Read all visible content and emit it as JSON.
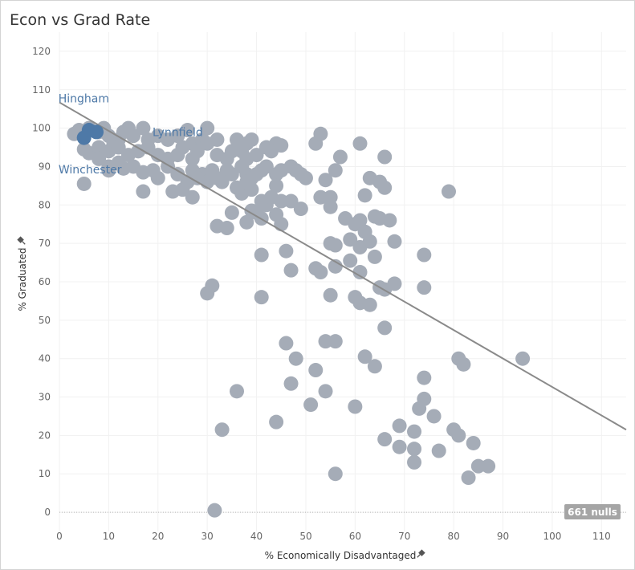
{
  "title": "Econ vs Grad Rate",
  "nulls_badge": "661 nulls",
  "colors": {
    "point": "#a5acb7",
    "highlight": "#4e79a7",
    "trend": "#8a8a8a",
    "grid": "#f1f1f1"
  },
  "chart_data": {
    "type": "scatter",
    "title": "Econ vs Grad Rate",
    "xlabel": "% Economically Disadvantaged",
    "ylabel": "% Graduated",
    "xlim": [
      0,
      115
    ],
    "ylim": [
      -5,
      125
    ],
    "xticks": [
      0,
      10,
      20,
      30,
      40,
      50,
      60,
      70,
      80,
      90,
      100,
      110
    ],
    "yticks": [
      0,
      10,
      20,
      30,
      40,
      50,
      60,
      70,
      80,
      90,
      100,
      110,
      120
    ],
    "grid": true,
    "trendline": {
      "x": [
        0,
        115
      ],
      "y": [
        106.7,
        21.5
      ]
    },
    "highlighted": [
      {
        "label": "Hingham",
        "x": 5,
        "y": 97.5
      },
      {
        "label": "Lynnfield",
        "x": 7.5,
        "y": 99
      },
      {
        "label": "Winchester",
        "x": 6,
        "y": 99.5
      }
    ],
    "points": [
      [
        3,
        98.5
      ],
      [
        4,
        99.5
      ],
      [
        6,
        100
      ],
      [
        8,
        99
      ],
      [
        9,
        100
      ],
      [
        10,
        98
      ],
      [
        12,
        97
      ],
      [
        13,
        99
      ],
      [
        14,
        100
      ],
      [
        15,
        98
      ],
      [
        17,
        100
      ],
      [
        18,
        97
      ],
      [
        20,
        98
      ],
      [
        22,
        97
      ],
      [
        24,
        98
      ],
      [
        26,
        99.5
      ],
      [
        27,
        96
      ],
      [
        29,
        97
      ],
      [
        30,
        100
      ],
      [
        32,
        97
      ],
      [
        5,
        94.5
      ],
      [
        6,
        93.5
      ],
      [
        8,
        95
      ],
      [
        10,
        94
      ],
      [
        11,
        96
      ],
      [
        12,
        95
      ],
      [
        14,
        93
      ],
      [
        16,
        94
      ],
      [
        18,
        95
      ],
      [
        20,
        93
      ],
      [
        22,
        92
      ],
      [
        24,
        93
      ],
      [
        25,
        95
      ],
      [
        27,
        92
      ],
      [
        28,
        94
      ],
      [
        30,
        96
      ],
      [
        32,
        93
      ],
      [
        34,
        92
      ],
      [
        35,
        94
      ],
      [
        36,
        97
      ],
      [
        38,
        96
      ],
      [
        39,
        97
      ],
      [
        37,
        94
      ],
      [
        38,
        92
      ],
      [
        40,
        93
      ],
      [
        42,
        95
      ],
      [
        44,
        96
      ],
      [
        45,
        95.5
      ],
      [
        43,
        94
      ],
      [
        8,
        92
      ],
      [
        10,
        90
      ],
      [
        12,
        91
      ],
      [
        13,
        89.5
      ],
      [
        15,
        90
      ],
      [
        17,
        88.5
      ],
      [
        19,
        89
      ],
      [
        20,
        87
      ],
      [
        22,
        90
      ],
      [
        24,
        88
      ],
      [
        26,
        86
      ],
      [
        27,
        89
      ],
      [
        29,
        88
      ],
      [
        30,
        86
      ],
      [
        31,
        89
      ],
      [
        32,
        87
      ],
      [
        34,
        89
      ],
      [
        35,
        88
      ],
      [
        33,
        86
      ],
      [
        37,
        90
      ],
      [
        38,
        88
      ],
      [
        39,
        87
      ],
      [
        41,
        89
      ],
      [
        42,
        90
      ],
      [
        44,
        88
      ],
      [
        45,
        89
      ],
      [
        47,
        90
      ],
      [
        48,
        89
      ],
      [
        49,
        88
      ],
      [
        50,
        87
      ],
      [
        52,
        96
      ],
      [
        53,
        98.5
      ],
      [
        56,
        89
      ],
      [
        57,
        92.5
      ],
      [
        10,
        89
      ],
      [
        5,
        85.5
      ],
      [
        17,
        83.5
      ],
      [
        23,
        83.5
      ],
      [
        25,
        84
      ],
      [
        27,
        82
      ],
      [
        28,
        87
      ],
      [
        36,
        84.5
      ],
      [
        37,
        83
      ],
      [
        38,
        86
      ],
      [
        39,
        84
      ],
      [
        40,
        88
      ],
      [
        41,
        81
      ],
      [
        42,
        80
      ],
      [
        43,
        82
      ],
      [
        44,
        85
      ],
      [
        45,
        81
      ],
      [
        47,
        81
      ],
      [
        49,
        79
      ],
      [
        53,
        82
      ],
      [
        54,
        86.5
      ],
      [
        55,
        82
      ],
      [
        55,
        79.5
      ],
      [
        61,
        96
      ],
      [
        66,
        92.5
      ],
      [
        62,
        82.5
      ],
      [
        63,
        87
      ],
      [
        65,
        86
      ],
      [
        66,
        84.5
      ],
      [
        79,
        83.5
      ],
      [
        35,
        78
      ],
      [
        39,
        78.5
      ],
      [
        40,
        78
      ],
      [
        41,
        76.5
      ],
      [
        38,
        75.5
      ],
      [
        44,
        77.5
      ],
      [
        45,
        75
      ],
      [
        32,
        74.5
      ],
      [
        34,
        74
      ],
      [
        58,
        76.5
      ],
      [
        60,
        75
      ],
      [
        61,
        76
      ],
      [
        62,
        73
      ],
      [
        64,
        77
      ],
      [
        65,
        76.5
      ],
      [
        67,
        76
      ],
      [
        59,
        71
      ],
      [
        61,
        69
      ],
      [
        63,
        70.5
      ],
      [
        55,
        70
      ],
      [
        56,
        69.5
      ],
      [
        68,
        70.5
      ],
      [
        41,
        67
      ],
      [
        46,
        68
      ],
      [
        64,
        66.5
      ],
      [
        74,
        67
      ],
      [
        47,
        63
      ],
      [
        52,
        63.5
      ],
      [
        53,
        62.5
      ],
      [
        56,
        64
      ],
      [
        59,
        65.5
      ],
      [
        61,
        62.5
      ],
      [
        65,
        58.5
      ],
      [
        66,
        58
      ],
      [
        68,
        59.5
      ],
      [
        74,
        58.5
      ],
      [
        31,
        59
      ],
      [
        30,
        57
      ],
      [
        41,
        56
      ],
      [
        55,
        56.5
      ],
      [
        60,
        56
      ],
      [
        61,
        54.5
      ],
      [
        63,
        54
      ],
      [
        66,
        48
      ],
      [
        46,
        44
      ],
      [
        48,
        40
      ],
      [
        54,
        44.5
      ],
      [
        56,
        44.5
      ],
      [
        62,
        40.5
      ],
      [
        64,
        38
      ],
      [
        81,
        40
      ],
      [
        82,
        38.5
      ],
      [
        94,
        40
      ],
      [
        52,
        37
      ],
      [
        47,
        33.5
      ],
      [
        54,
        31.5
      ],
      [
        74,
        35
      ],
      [
        74,
        29.5
      ],
      [
        36,
        31.5
      ],
      [
        51,
        28
      ],
      [
        60,
        27.5
      ],
      [
        73,
        27
      ],
      [
        76,
        25
      ],
      [
        44,
        23.5
      ],
      [
        33,
        21.5
      ],
      [
        69,
        22.5
      ],
      [
        72,
        21
      ],
      [
        80,
        21.5
      ],
      [
        81,
        20
      ],
      [
        66,
        19
      ],
      [
        69,
        17
      ],
      [
        72,
        16.5
      ],
      [
        77,
        16
      ],
      [
        72,
        13
      ],
      [
        84,
        18
      ],
      [
        85,
        12
      ],
      [
        87,
        12
      ],
      [
        83,
        9
      ],
      [
        56,
        10
      ],
      [
        31.5,
        0.5
      ]
    ]
  }
}
